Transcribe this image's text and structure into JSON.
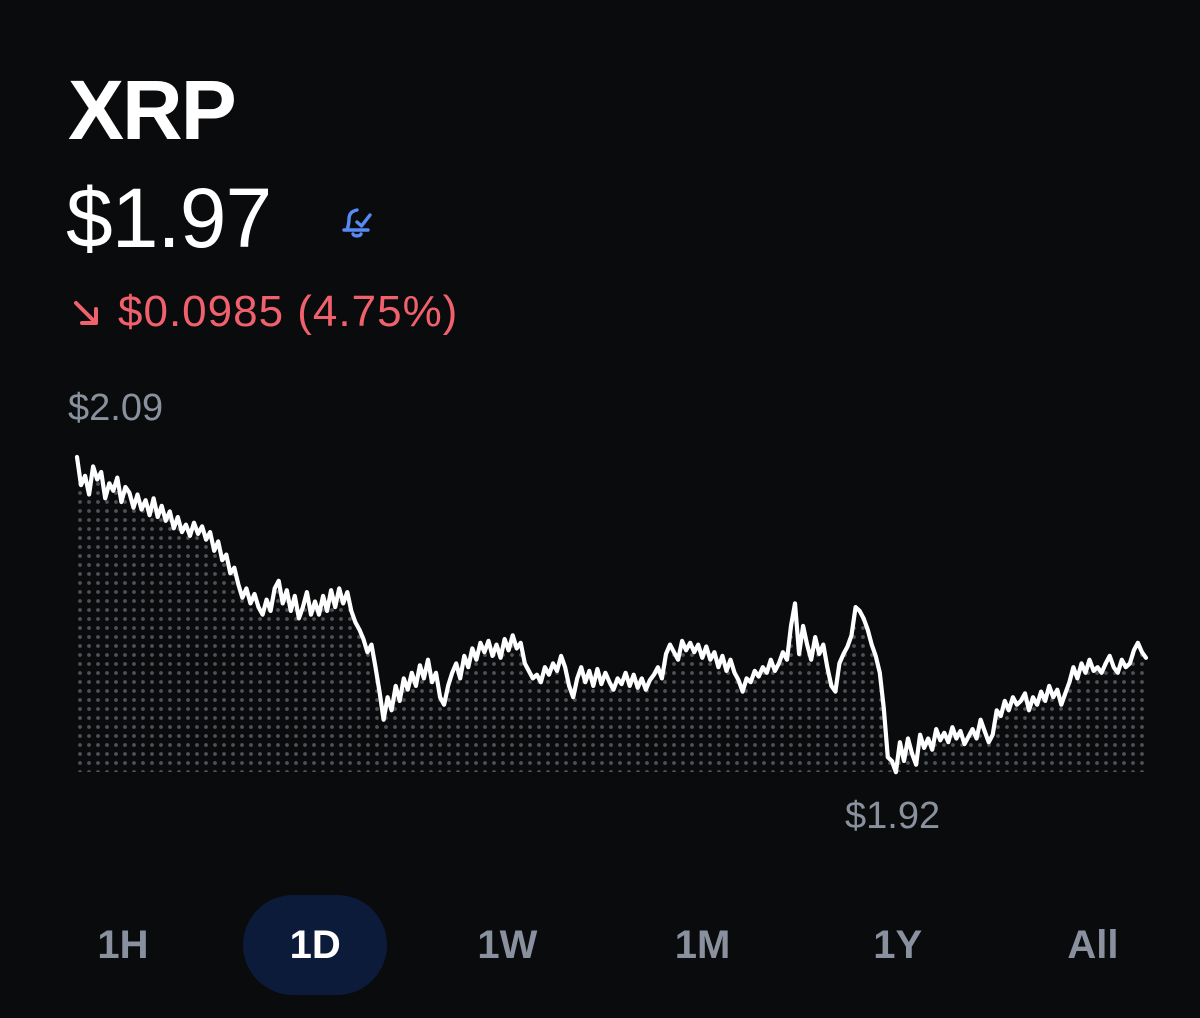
{
  "asset": {
    "symbol": "XRP",
    "price": "$1.97",
    "alert_icon": "price-alert-bell-icon"
  },
  "change": {
    "direction": "down",
    "arrow_icon": "arrow-down-right-icon",
    "text": "$0.0985 (4.75%)"
  },
  "colors": {
    "background": "#0a0b0d",
    "text": "#ffffff",
    "muted": "#8a919e",
    "negative": "#f0616d",
    "accent": "#588af5",
    "active_range_bg": "#0d1b3a",
    "line": "#ffffff",
    "dots": "#4e5258"
  },
  "range_tabs": {
    "items": [
      "1H",
      "1D",
      "1W",
      "1M",
      "1Y",
      "All"
    ],
    "active": "1D"
  },
  "chart_data": {
    "type": "area",
    "timeframe": "1D",
    "high_label": "$2.09",
    "low_label": "$1.92",
    "ylim": [
      1.92,
      2.09
    ],
    "values": [
      2.09,
      2.075,
      2.08,
      2.07,
      2.085,
      2.078,
      2.082,
      2.068,
      2.076,
      2.072,
      2.079,
      2.066,
      2.074,
      2.071,
      2.063,
      2.07,
      2.062,
      2.067,
      2.059,
      2.068,
      2.058,
      2.064,
      2.056,
      2.061,
      2.052,
      2.058,
      2.05,
      2.054,
      2.048,
      2.055,
      2.049,
      2.053,
      2.046,
      2.05,
      2.04,
      2.045,
      2.035,
      2.038,
      2.028,
      2.031,
      2.022,
      2.015,
      2.02,
      2.012,
      2.017,
      2.01,
      2.006,
      2.014,
      2.008,
      2.02,
      2.024,
      2.012,
      2.019,
      2.008,
      2.016,
      2.004,
      2.01,
      2.018,
      2.006,
      2.013,
      2.006,
      2.016,
      2.008,
      2.019,
      2.01,
      2.02,
      2.012,
      2.018,
      2.008,
      2.002,
      1.998,
      1.993,
      1.986,
      1.99,
      1.978,
      1.965,
      1.95,
      1.962,
      1.955,
      1.968,
      1.96,
      1.972,
      1.966,
      1.975,
      1.968,
      1.979,
      1.972,
      1.982,
      1.97,
      1.975,
      1.962,
      1.958,
      1.968,
      1.975,
      1.98,
      1.972,
      1.984,
      1.978,
      1.988,
      1.982,
      1.991,
      1.986,
      1.992,
      1.984,
      1.99,
      1.983,
      1.993,
      1.987,
      1.995,
      1.988,
      1.991,
      1.98,
      1.976,
      1.972,
      1.974,
      1.97,
      1.978,
      1.974,
      1.98,
      1.976,
      1.984,
      1.978,
      1.968,
      1.962,
      1.972,
      1.978,
      1.97,
      1.976,
      1.968,
      1.977,
      1.969,
      1.975,
      1.97,
      1.966,
      1.972,
      1.969,
      1.975,
      1.968,
      1.974,
      1.967,
      1.972,
      1.966,
      1.971,
      1.974,
      1.978,
      1.972,
      1.985,
      1.99,
      1.986,
      1.982,
      1.992,
      1.987,
      1.991,
      1.986,
      1.99,
      1.983,
      1.989,
      1.982,
      1.986,
      1.978,
      1.984,
      1.976,
      1.982,
      1.975,
      1.971,
      1.965,
      1.972,
      1.97,
      1.976,
      1.973,
      1.978,
      1.975,
      1.982,
      1.976,
      1.98,
      1.986,
      1.982,
      2.0,
      2.012,
      1.985,
      2.0,
      1.99,
      1.982,
      1.994,
      1.985,
      1.99,
      1.978,
      1.968,
      1.965,
      1.98,
      1.985,
      1.989,
      1.995,
      2.01,
      2.008,
      2.004,
      1.998,
      1.99,
      1.984,
      1.975,
      1.956,
      1.93,
      1.928,
      1.922,
      1.938,
      1.928,
      1.94,
      1.932,
      1.926,
      1.942,
      1.935,
      1.94,
      1.934,
      1.945,
      1.939,
      1.943,
      1.938,
      1.946,
      1.94,
      1.944,
      1.937,
      1.941,
      1.945,
      1.94,
      1.95,
      1.944,
      1.938,
      1.942,
      1.955,
      1.952,
      1.96,
      1.955,
      1.962,
      1.958,
      1.96,
      1.964,
      1.955,
      1.962,
      1.958,
      1.965,
      1.96,
      1.968,
      1.962,
      1.966,
      1.958,
      1.964,
      1.97,
      1.978,
      1.972,
      1.98,
      1.975,
      1.982,
      1.976,
      1.978,
      1.975,
      1.98,
      1.984,
      1.978,
      1.975,
      1.982,
      1.978,
      1.98,
      1.987,
      1.991,
      1.986,
      1.983
    ]
  }
}
